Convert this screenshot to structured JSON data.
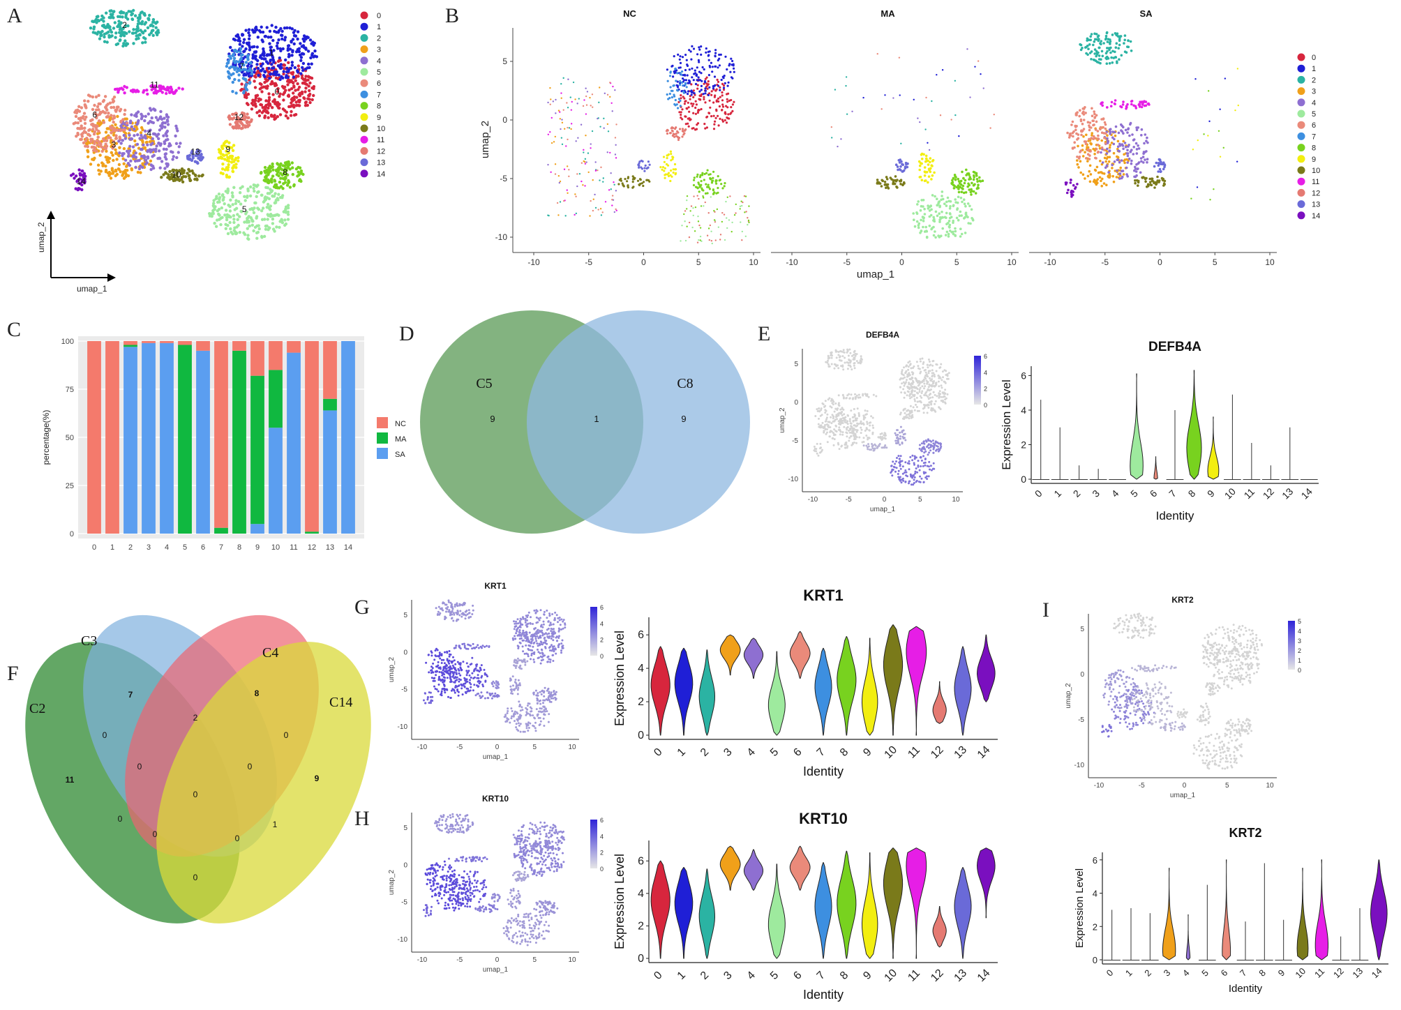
{
  "clusters": [
    "0",
    "1",
    "2",
    "3",
    "4",
    "5",
    "6",
    "7",
    "8",
    "9",
    "10",
    "11",
    "12",
    "13",
    "14"
  ],
  "cluster_colors": [
    "#d7263d",
    "#1f1fd6",
    "#2bb3a3",
    "#f0a01a",
    "#8e6fd1",
    "#9eea9e",
    "#ea8a7a",
    "#3d8fe0",
    "#78d21f",
    "#f2ee10",
    "#7a7a1a",
    "#e61ee6",
    "#e57a72",
    "#6a6ad8",
    "#7a0fbf"
  ],
  "panelA": {
    "letter": "A",
    "axis_y": "umap_2",
    "axis_x": "umap_1"
  },
  "panelB": {
    "letter": "B",
    "subtitles": [
      "NC",
      "MA",
      "SA"
    ],
    "xlabel": "umap_1",
    "ylabel": "umap_2",
    "xticks": [
      "-10",
      "-5",
      "0",
      "5",
      "10"
    ],
    "yticks": [
      "5",
      "0",
      "-5",
      "-10"
    ]
  },
  "panelC": {
    "letter": "C",
    "chart_data": {
      "type": "bar",
      "stacked": true,
      "categories": [
        "0",
        "1",
        "2",
        "3",
        "4",
        "5",
        "6",
        "7",
        "8",
        "9",
        "10",
        "11",
        "12",
        "13",
        "14"
      ],
      "series": [
        {
          "name": "SA",
          "color": "#5b9ef0",
          "values": [
            0,
            0,
            97,
            99,
            99,
            0,
            95,
            0,
            0,
            5,
            55,
            94,
            0,
            64,
            100
          ]
        },
        {
          "name": "MA",
          "color": "#10b840",
          "values": [
            0,
            0,
            1,
            0,
            0,
            98,
            0,
            3,
            95,
            77,
            30,
            0,
            1,
            6,
            0
          ]
        },
        {
          "name": "NC",
          "color": "#f47a6c",
          "values": [
            100,
            100,
            2,
            1,
            1,
            2,
            5,
            97,
            5,
            18,
            15,
            6,
            99,
            30,
            0
          ]
        }
      ],
      "ylabel": "percentage(%)",
      "yticks": [
        "0",
        "25",
        "50",
        "75",
        "100"
      ],
      "ylim": [
        0,
        100
      ],
      "legend": [
        "NC",
        "MA",
        "SA"
      ]
    }
  },
  "panelD": {
    "letter": "D",
    "sets": [
      {
        "label": "C5",
        "only": "9"
      },
      {
        "label": "C8",
        "only": "9"
      }
    ],
    "overlap": "1"
  },
  "panelE": {
    "letter": "E",
    "feature_title": "DEFB4A",
    "feature_scale": [
      "6",
      "4",
      "2",
      "0"
    ],
    "feature_xticks": [
      "-10",
      "-5",
      "0",
      "5",
      "10"
    ],
    "feature_yticks": [
      "5",
      "0",
      "-5",
      "-10"
    ],
    "feature_xlabel": "umap_1",
    "feature_ylabel": "umap_2",
    "violin": {
      "title": "DEFB4A",
      "ylabel": "Expression Level",
      "xlabel": "Identity",
      "yticks": [
        "0",
        "2",
        "4",
        "6"
      ],
      "ylim": [
        0,
        6.3
      ],
      "max": [
        4.6,
        3.0,
        0.8,
        0.6,
        0,
        6.1,
        1.3,
        4.0,
        6.3,
        3.6,
        4.9,
        2.1,
        0.8,
        3.0,
        0
      ],
      "mode": [
        0,
        0,
        0,
        0,
        0,
        0.8,
        0,
        0,
        1.8,
        0.5,
        0,
        0,
        0,
        0,
        0
      ],
      "width": [
        0,
        0,
        0,
        0,
        0,
        0.7,
        0.2,
        0,
        0.8,
        0.6,
        0,
        0,
        0,
        0,
        0
      ]
    }
  },
  "panelF": {
    "letter": "F",
    "sets": [
      "C2",
      "C3",
      "C4",
      "C14"
    ],
    "region_values": [
      "11",
      "7",
      "8",
      "9",
      "0",
      "2",
      "0",
      "0",
      "0",
      "0",
      "0",
      "0",
      "1",
      "0",
      "0"
    ]
  },
  "panelG": {
    "letter": "G",
    "feature_title": "KRT1",
    "feature_scale": [
      "6",
      "4",
      "2",
      "0"
    ],
    "feature_xticks": [
      "-10",
      "-5",
      "0",
      "5",
      "10"
    ],
    "feature_yticks": [
      "5",
      "0",
      "-5",
      "-10"
    ],
    "feature_xlabel": "umap_1",
    "feature_ylabel": "umap_2",
    "violin": {
      "title": "KRT1",
      "ylabel": "Expression Level",
      "xlabel": "Identity",
      "yticks": [
        "0",
        "2",
        "4",
        "6"
      ],
      "ylim": [
        0,
        6.8
      ],
      "min": [
        0,
        0,
        0,
        3.6,
        3.4,
        0,
        3.4,
        0,
        0,
        0,
        0,
        0,
        0.7,
        0,
        2.0
      ],
      "max": [
        5.3,
        5.2,
        5.1,
        6.0,
        5.8,
        5.0,
        6.2,
        5.2,
        5.9,
        5.8,
        6.6,
        6.5,
        3.2,
        5.3,
        6.0
      ],
      "mode": [
        3.0,
        3.1,
        2.3,
        5.1,
        4.8,
        1.8,
        4.9,
        2.9,
        3.3,
        2.0,
        4.2,
        5.0,
        1.5,
        2.8,
        3.7
      ],
      "width": [
        0.85,
        0.8,
        0.7,
        0.9,
        0.85,
        0.75,
        0.9,
        0.75,
        0.85,
        0.7,
        0.85,
        0.9,
        0.6,
        0.75,
        0.8
      ]
    }
  },
  "panelH": {
    "letter": "H",
    "feature_title": "KRT10",
    "feature_scale": [
      "6",
      "4",
      "2",
      "0"
    ],
    "feature_xticks": [
      "-10",
      "-5",
      "0",
      "5",
      "10"
    ],
    "feature_yticks": [
      "5",
      "0",
      "-5",
      "-10"
    ],
    "feature_xlabel": "umap_1",
    "feature_ylabel": "umap_2",
    "violin": {
      "title": "KRT10",
      "ylabel": "Expression Level",
      "xlabel": "Identity",
      "yticks": [
        "0",
        "2",
        "4",
        "6"
      ],
      "ylim": [
        0,
        7.0
      ],
      "min": [
        0,
        0,
        0,
        4.2,
        4.2,
        0,
        4.2,
        0,
        0,
        0,
        0,
        0,
        0.7,
        0,
        2.5
      ],
      "max": [
        6.0,
        5.6,
        5.5,
        6.9,
        6.7,
        5.8,
        6.9,
        5.9,
        6.6,
        6.5,
        6.8,
        6.8,
        3.2,
        5.6,
        6.8
      ],
      "mode": [
        3.6,
        3.4,
        2.6,
        5.8,
        5.4,
        2.1,
        5.6,
        3.2,
        3.4,
        2.1,
        4.6,
        5.7,
        1.7,
        3.2,
        5.7
      ],
      "width": [
        0.85,
        0.8,
        0.7,
        0.9,
        0.85,
        0.75,
        0.9,
        0.75,
        0.85,
        0.7,
        0.85,
        0.9,
        0.6,
        0.75,
        0.8
      ]
    }
  },
  "panelI": {
    "letter": "I",
    "feature_title": "KRT2",
    "feature_scale": [
      "5",
      "4",
      "3",
      "2",
      "1",
      "0"
    ],
    "feature_xticks": [
      "-10",
      "-5",
      "0",
      "5",
      "10"
    ],
    "feature_yticks": [
      "5",
      "0",
      "-5",
      "-10"
    ],
    "feature_xlabel": "umap_1",
    "feature_ylabel": "umap_2",
    "violin": {
      "title": "KRT2",
      "ylabel": "Expression Level",
      "xlabel": "Identity",
      "yticks": [
        "0",
        "2",
        "4",
        "6"
      ],
      "ylim": [
        0,
        6.2
      ],
      "max": [
        3.0,
        3.1,
        2.8,
        5.5,
        2.7,
        4.5,
        6.0,
        2.3,
        5.8,
        2.4,
        5.5,
        6.0,
        1.4,
        3.1,
        6.0
      ],
      "mode": [
        0,
        0,
        0,
        0.6,
        0.1,
        0,
        0.5,
        0,
        0,
        0,
        0.7,
        0.9,
        0,
        0,
        2.8
      ],
      "width": [
        0,
        0,
        0,
        0.7,
        0.2,
        0,
        0.45,
        0,
        0,
        0,
        0.6,
        0.7,
        0,
        0,
        0.9
      ]
    }
  }
}
